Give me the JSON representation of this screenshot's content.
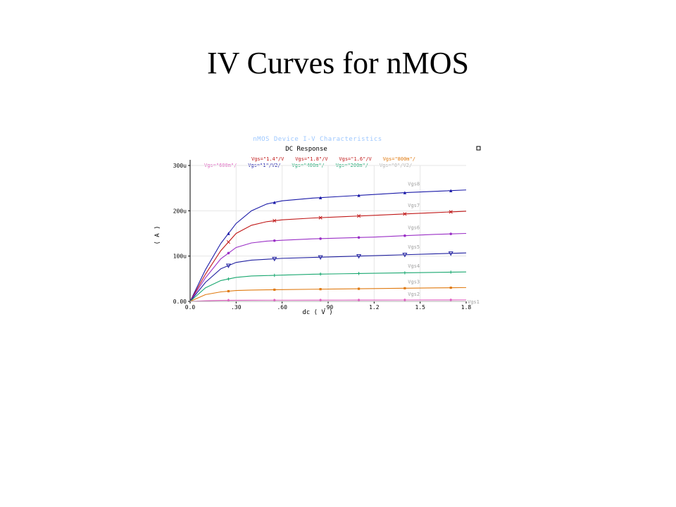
{
  "slide": {
    "title": "IV Curves for nMOS"
  },
  "chart_data": {
    "type": "line",
    "title": "nMOS Device I-V Characteristics",
    "subtitle": "DC Response",
    "xlabel": "dc ( V )",
    "ylabel": "( A )",
    "xlim": [
      0,
      1.8
    ],
    "ylim": [
      0,
      0.0003
    ],
    "x_ticks": [
      "0.0",
      ".30",
      ".60",
      ".90",
      "1.2",
      "1.5",
      "1.8"
    ],
    "y_ticks": [
      "0.00",
      "100u",
      "200u",
      "300u"
    ],
    "legend_rows": [
      [
        "Vgs=\"1.4\"/V",
        "Vgs=\"1.8\"/V",
        "Vgs=\"1.6\"/V",
        "Vgs=\"800m\"/"
      ],
      [
        "Vgs=\"600m\"/",
        "Vgs=\"1\"/V2/",
        "Vgs=\"400m\"/",
        "Vgs=\"200m\"/",
        "Vgs=\"0\"/V2/"
      ]
    ],
    "series": [
      {
        "name": "Vgs8",
        "color": "#1a1aa8",
        "marker": "triangle",
        "x": [
          0,
          0.1,
          0.2,
          0.3,
          0.4,
          0.5,
          0.6,
          0.8,
          1.0,
          1.2,
          1.4,
          1.6,
          1.8
        ],
        "y": [
          0,
          7e-05,
          0.000128,
          0.000172,
          0.0002,
          0.000215,
          0.000222,
          0.000228,
          0.000232,
          0.000236,
          0.00024,
          0.000243,
          0.000246
        ]
      },
      {
        "name": "Vgs7",
        "color": "#c01818",
        "marker": "cross",
        "x": [
          0,
          0.1,
          0.2,
          0.3,
          0.4,
          0.5,
          0.6,
          0.8,
          1.0,
          1.2,
          1.4,
          1.6,
          1.8
        ],
        "y": [
          0,
          6e-05,
          0.000112,
          0.00015,
          0.000168,
          0.000176,
          0.00018,
          0.000184,
          0.000187,
          0.00019,
          0.000193,
          0.000196,
          0.000199
        ]
      },
      {
        "name": "Vgs6",
        "color": "#9a2fc6",
        "marker": "circle",
        "x": [
          0,
          0.1,
          0.2,
          0.3,
          0.4,
          0.5,
          0.6,
          0.8,
          1.0,
          1.2,
          1.4,
          1.6,
          1.8
        ],
        "y": [
          0,
          5.2e-05,
          9.4e-05,
          0.000119,
          0.000129,
          0.000133,
          0.000135,
          0.000138,
          0.00014,
          0.000142,
          0.000145,
          0.000148,
          0.00015
        ]
      },
      {
        "name": "Vgs5",
        "color": "#2020a0",
        "marker": "triangle-down",
        "x": [
          0,
          0.1,
          0.2,
          0.3,
          0.4,
          0.5,
          0.6,
          0.8,
          1.0,
          1.2,
          1.4,
          1.6,
          1.8
        ],
        "y": [
          0,
          4.2e-05,
          7.2e-05,
          8.6e-05,
          9.1e-05,
          9.3e-05,
          9.5e-05,
          9.7e-05,
          9.9e-05,
          0.000101,
          0.000103,
          0.000105,
          0.000107
        ]
      },
      {
        "name": "Vgs4",
        "color": "#1aa870",
        "marker": "plus",
        "x": [
          0,
          0.1,
          0.2,
          0.3,
          0.4,
          0.5,
          0.6,
          0.8,
          1.0,
          1.2,
          1.4,
          1.6,
          1.8
        ],
        "y": [
          0,
          3e-05,
          4.6e-05,
          5.3e-05,
          5.6e-05,
          5.7e-05,
          5.8e-05,
          6e-05,
          6.1e-05,
          6.2e-05,
          6.3e-05,
          6.4e-05,
          6.5e-05
        ]
      },
      {
        "name": "Vgs3",
        "color": "#e07a10",
        "marker": "square",
        "x": [
          0,
          0.1,
          0.2,
          0.3,
          0.4,
          0.5,
          0.6,
          0.8,
          1.0,
          1.2,
          1.4,
          1.6,
          1.8
        ],
        "y": [
          0,
          1.5e-05,
          2.1e-05,
          2.4e-05,
          2.5e-05,
          2.55e-05,
          2.6e-05,
          2.68e-05,
          2.75e-05,
          2.82e-05,
          2.9e-05,
          2.98e-05,
          3.05e-05
        ]
      },
      {
        "name": "Vgs2",
        "color": "#e060c0",
        "marker": "diamond",
        "x": [
          0,
          0.1,
          0.2,
          0.3,
          0.4,
          0.5,
          0.6,
          0.8,
          1.0,
          1.2,
          1.4,
          1.6,
          1.8
        ],
        "y": [
          0,
          1.5e-06,
          2.2e-06,
          2.5e-06,
          2.6e-06,
          2.7e-06,
          2.7e-06,
          2.8e-06,
          2.9e-06,
          3e-06,
          3.1e-06,
          3.2e-06,
          3.3e-06
        ]
      },
      {
        "name": "Vgs1",
        "color": "#b0b0b0",
        "marker": "none",
        "x": [
          0,
          1.8
        ],
        "y": [
          0,
          0
        ]
      }
    ]
  }
}
